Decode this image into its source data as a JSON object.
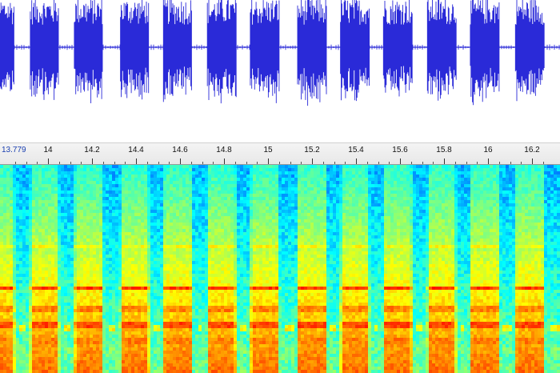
{
  "ruler": {
    "start_label": "13.779",
    "start_time": 13.779,
    "tick_labels": [
      "14",
      "14.2",
      "14.4",
      "14.6",
      "14.8",
      "15",
      "15.2",
      "15.4",
      "15.6",
      "15.8",
      "16",
      "16.2"
    ],
    "tick_values": [
      14,
      14.2,
      14.4,
      14.6,
      14.8,
      15,
      15.2,
      15.4,
      15.6,
      15.8,
      16,
      16.2
    ]
  },
  "colors": {
    "waveform": "#2a2ad8",
    "ruler_start_label": "#1a3fb0",
    "spectrogram_low": "#1030c0",
    "spectrogram_high": "#a00000"
  },
  "pulse_times": [
    13.783,
    13.985,
    14.185,
    14.395,
    14.59,
    14.79,
    14.985,
    15.2,
    15.395,
    15.59,
    15.79,
    15.985,
    16.19
  ]
}
